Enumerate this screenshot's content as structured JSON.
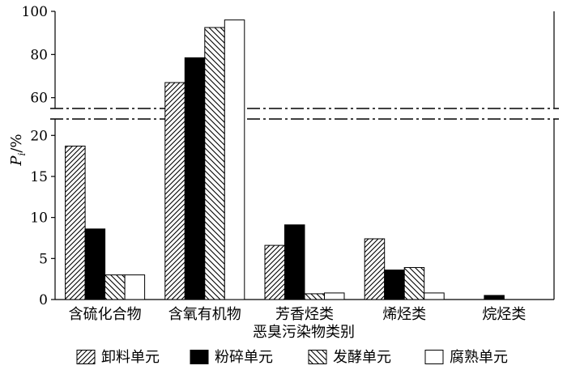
{
  "chart_data": {
    "type": "bar",
    "ylabel_main": "P",
    "ylabel_sub": "i",
    "ylabel_unit": "/%",
    "xlabel": "恶臭污染物类别",
    "categories": [
      "含硫化合物",
      "含氧有机物",
      "芳香烃类",
      "烯烃类",
      "烷烃类"
    ],
    "series": [
      {
        "name": "卸料单元",
        "pattern": "hatch-fwd",
        "values": [
          18.7,
          67,
          6.6,
          7.4,
          0
        ]
      },
      {
        "name": "粉碎单元",
        "pattern": "solid-black",
        "values": [
          8.6,
          78.5,
          9.1,
          3.6,
          0.5
        ]
      },
      {
        "name": "发酵单元",
        "pattern": "hatch-back",
        "values": [
          3.0,
          92.5,
          0.7,
          3.9,
          0
        ]
      },
      {
        "name": "腐熟单元",
        "pattern": "white",
        "values": [
          3.0,
          96,
          0.8,
          0.8,
          0
        ]
      }
    ],
    "broken_axis": true,
    "lower_segment": {
      "ylim": [
        0,
        22
      ],
      "ticks": [
        0,
        5,
        10,
        15,
        20
      ]
    },
    "upper_segment": {
      "ylim": [
        55,
        100
      ],
      "ticks": [
        60,
        80,
        100
      ]
    },
    "legend_position": "bottom",
    "grid": false
  }
}
